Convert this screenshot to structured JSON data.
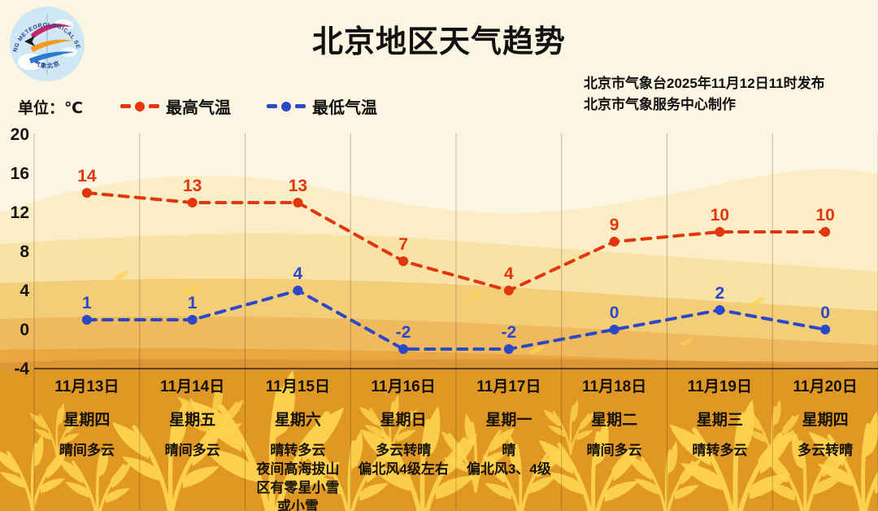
{
  "header": {
    "title": "北京地区天气趋势",
    "issued_line1": "北京市气象台2025年11月12日11时发布",
    "issued_line2": "北京市气象服务中心制作",
    "logo": {
      "ring_text": "BEIJING METEOROLOGICAL SERVICE",
      "bottom_text": "气象北京"
    }
  },
  "legend": {
    "unit_label": "单位：℃",
    "max_label": "最高气温",
    "min_label": "最低气温"
  },
  "chart_data": {
    "type": "line",
    "categories": [
      "11月13日",
      "11月14日",
      "11月15日",
      "11月16日",
      "11月17日",
      "11月18日",
      "11月19日",
      "11月20日"
    ],
    "series": [
      {
        "name": "最高气温",
        "color": "#e2360e",
        "values": [
          14,
          13,
          13,
          7,
          4,
          9,
          10,
          10
        ]
      },
      {
        "name": "最低气温",
        "color": "#2b49c6",
        "values": [
          1,
          1,
          4,
          -2,
          -2,
          0,
          2,
          0
        ]
      }
    ],
    "yticks": [
      20,
      16,
      12,
      8,
      4,
      0,
      -4
    ],
    "ylim": [
      -4,
      20
    ],
    "ylabel": "单位：℃",
    "grid": "vertical-column-separators",
    "legend_position": "top-left",
    "line_style": "dashed-with-dots",
    "point_label_position": "above"
  },
  "x_axis": {
    "columns": [
      {
        "date": "11月13日",
        "weekday": "星期四",
        "weather": [
          "晴间多云"
        ]
      },
      {
        "date": "11月14日",
        "weekday": "星期五",
        "weather": [
          "晴间多云"
        ]
      },
      {
        "date": "11月15日",
        "weekday": "星期六",
        "weather": [
          "晴转多云",
          "夜间高海拔山",
          "区有零星小雪",
          "或小雪"
        ]
      },
      {
        "date": "11月16日",
        "weekday": "星期日",
        "weather": [
          "多云转晴",
          "偏北风4级左右"
        ]
      },
      {
        "date": "11月17日",
        "weekday": "星期一",
        "weather": [
          "晴",
          "偏北风3、4级"
        ]
      },
      {
        "date": "11月18日",
        "weekday": "星期二",
        "weather": [
          "晴间多云"
        ]
      },
      {
        "date": "11月19日",
        "weekday": "星期三",
        "weather": [
          "晴转多云"
        ]
      },
      {
        "date": "11月20日",
        "weekday": "星期四",
        "weather": [
          "多云转晴"
        ]
      }
    ]
  },
  "colors": {
    "max_temp": "#e2360e",
    "min_temp": "#2b49c6",
    "background_cream": "#fcf5e1",
    "field_orange": "#e09824",
    "wheat_gold": "#ffd44e",
    "text": "#111111"
  }
}
